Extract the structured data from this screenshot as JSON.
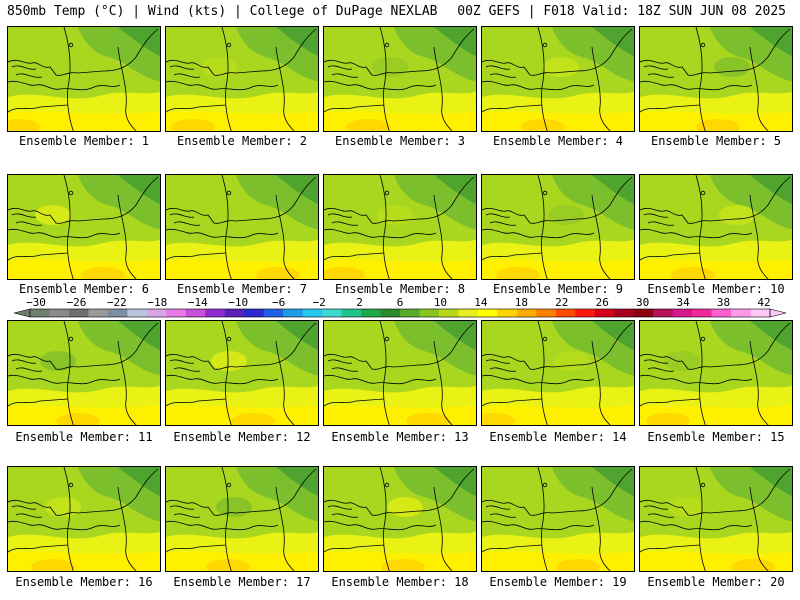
{
  "header": {
    "left": "850mb Temp (°C) | Wind (kts) | College of DuPage NEXLAB",
    "right": "00Z GEFS | F018 Valid: 18Z SUN JUN 08 2025"
  },
  "panels": [
    {
      "label": "Ensemble Member: 1"
    },
    {
      "label": "Ensemble Member: 2"
    },
    {
      "label": "Ensemble Member: 3"
    },
    {
      "label": "Ensemble Member: 4"
    },
    {
      "label": "Ensemble Member: 5"
    },
    {
      "label": "Ensemble Member: 6"
    },
    {
      "label": "Ensemble Member: 7"
    },
    {
      "label": "Ensemble Member: 8"
    },
    {
      "label": "Ensemble Member: 9"
    },
    {
      "label": "Ensemble Member: 10"
    },
    {
      "label": "Ensemble Member: 11"
    },
    {
      "label": "Ensemble Member: 12"
    },
    {
      "label": "Ensemble Member: 13"
    },
    {
      "label": "Ensemble Member: 14"
    },
    {
      "label": "Ensemble Member: 15"
    },
    {
      "label": "Ensemble Member: 16"
    },
    {
      "label": "Ensemble Member: 17"
    },
    {
      "label": "Ensemble Member: 18"
    },
    {
      "label": "Ensemble Member: 19"
    },
    {
      "label": "Ensemble Member: 20"
    }
  ],
  "colorbar": {
    "labels": [
      "-30",
      "-26",
      "-22",
      "-18",
      "-14",
      "-10",
      "-6",
      "-2",
      "2",
      "6",
      "10",
      "14",
      "18",
      "22",
      "26",
      "30",
      "34",
      "38",
      "42"
    ],
    "colors": [
      "#6e7f6e",
      "#8a8a8a",
      "#6f6f6f",
      "#9a9a9a",
      "#7b8ea0",
      "#b7c7d9",
      "#d7a6e6",
      "#e87ae8",
      "#c84fd8",
      "#8d2bd0",
      "#5a1fb8",
      "#2a2ad0",
      "#1f62e8",
      "#1f9be8",
      "#26c6f0",
      "#3ed8d0",
      "#22c48a",
      "#1ea84a",
      "#2b8c2a",
      "#58a82a",
      "#88c420",
      "#b8d818",
      "#e4f020",
      "#ffff00",
      "#ffd400",
      "#ffac00",
      "#ff7f00",
      "#ff4a00",
      "#ff1a10",
      "#d40018",
      "#a40020",
      "#8a0010",
      "#b8105a",
      "#d81890",
      "#f0289a",
      "#ff60d0",
      "#ff9ae8",
      "#ffc8f4"
    ],
    "min_c": -30,
    "max_c": 42,
    "step_c": 2
  }
}
